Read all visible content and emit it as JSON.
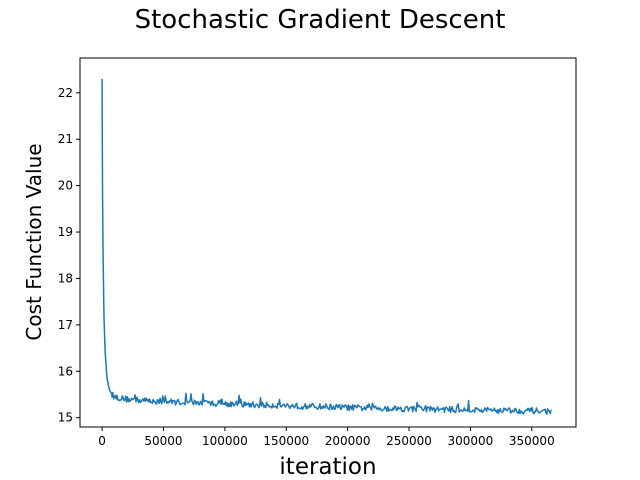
{
  "chart_data": {
    "type": "line",
    "title": "Stochastic Gradient Descent",
    "xlabel": "iteration",
    "ylabel": "Cost Function Value",
    "xlim": [
      -18000,
      386000
    ],
    "ylim": [
      14.8,
      22.75
    ],
    "xticks": [
      0,
      50000,
      100000,
      150000,
      200000,
      250000,
      300000,
      350000
    ],
    "xtick_labels": [
      "0",
      "50000",
      "100000",
      "150000",
      "200000",
      "250000",
      "300000",
      "350000"
    ],
    "yticks": [
      15,
      16,
      17,
      18,
      19,
      20,
      21,
      22
    ],
    "ytick_labels": [
      "15",
      "16",
      "17",
      "18",
      "19",
      "20",
      "21",
      "22"
    ],
    "grid": false,
    "series": [
      {
        "color": "#1f77b4",
        "x": [
          0,
          300,
          800,
          1500,
          2500,
          4000,
          6000,
          8000,
          10000,
          15000,
          20000,
          30000,
          40000,
          50000,
          60000,
          70000,
          80000,
          90000,
          100000,
          110000,
          120000,
          130000,
          140000,
          150000,
          160000,
          170000,
          180000,
          190000,
          200000,
          210000,
          220000,
          230000,
          240000,
          250000,
          260000,
          270000,
          280000,
          290000,
          300000,
          310000,
          320000,
          330000,
          340000,
          350000,
          360000,
          366000
        ],
        "y": [
          22.3,
          20.0,
          18.5,
          17.2,
          16.4,
          15.85,
          15.6,
          15.5,
          15.45,
          15.42,
          15.4,
          15.38,
          15.36,
          15.35,
          15.34,
          15.33,
          15.32,
          15.31,
          15.3,
          15.29,
          15.28,
          15.27,
          15.27,
          15.26,
          15.25,
          15.24,
          15.24,
          15.23,
          15.22,
          15.21,
          15.21,
          15.2,
          15.2,
          15.19,
          15.19,
          15.18,
          15.18,
          15.17,
          15.17,
          15.16,
          15.16,
          15.16,
          15.15,
          15.15,
          15.14,
          15.14
        ]
      }
    ]
  }
}
